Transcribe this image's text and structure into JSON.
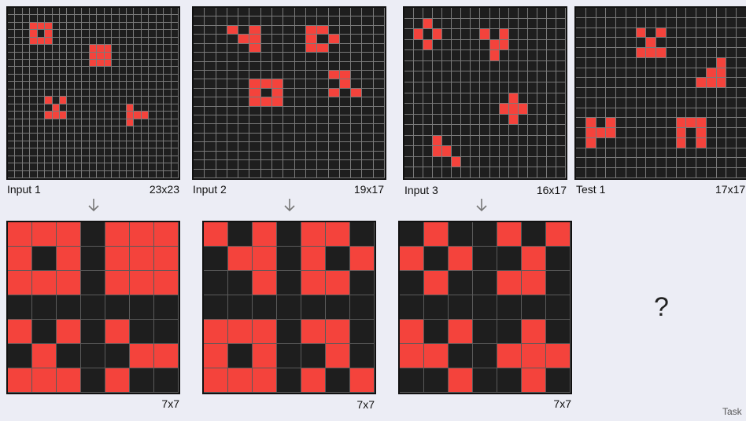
{
  "inputs": [
    {
      "label": "Input 1",
      "size": "23x23",
      "rows": 23,
      "cols": 23,
      "cells": [
        [
          2,
          3
        ],
        [
          2,
          4
        ],
        [
          2,
          5
        ],
        [
          3,
          3
        ],
        [
          3,
          5
        ],
        [
          4,
          3
        ],
        [
          4,
          4
        ],
        [
          4,
          5
        ],
        [
          5,
          11
        ],
        [
          5,
          12
        ],
        [
          5,
          13
        ],
        [
          6,
          11
        ],
        [
          6,
          12
        ],
        [
          6,
          13
        ],
        [
          7,
          11
        ],
        [
          7,
          12
        ],
        [
          7,
          13
        ],
        [
          12,
          5
        ],
        [
          12,
          7
        ],
        [
          13,
          6
        ],
        [
          14,
          5
        ],
        [
          14,
          6
        ],
        [
          14,
          7
        ],
        [
          13,
          16
        ],
        [
          14,
          16
        ],
        [
          14,
          17
        ],
        [
          14,
          18
        ],
        [
          15,
          16
        ]
      ]
    },
    {
      "label": "Input 2",
      "size": "19x17",
      "rows": 19,
      "cols": 17,
      "cells": [
        [
          2,
          3
        ],
        [
          2,
          5
        ],
        [
          3,
          4
        ],
        [
          3,
          5
        ],
        [
          4,
          5
        ],
        [
          2,
          10
        ],
        [
          2,
          11
        ],
        [
          3,
          10
        ],
        [
          3,
          12
        ],
        [
          4,
          10
        ],
        [
          4,
          11
        ],
        [
          8,
          5
        ],
        [
          8,
          6
        ],
        [
          8,
          7
        ],
        [
          9,
          5
        ],
        [
          9,
          7
        ],
        [
          10,
          5
        ],
        [
          10,
          6
        ],
        [
          10,
          7
        ],
        [
          7,
          12
        ],
        [
          7,
          13
        ],
        [
          8,
          13
        ],
        [
          9,
          12
        ],
        [
          9,
          14
        ]
      ]
    },
    {
      "label": "Input 3",
      "size": "16x17",
      "rows": 16,
      "cols": 17,
      "cells": [
        [
          1,
          2
        ],
        [
          2,
          1
        ],
        [
          2,
          3
        ],
        [
          3,
          2
        ],
        [
          2,
          8
        ],
        [
          2,
          10
        ],
        [
          3,
          9
        ],
        [
          3,
          10
        ],
        [
          4,
          9
        ],
        [
          8,
          11
        ],
        [
          9,
          10
        ],
        [
          9,
          11
        ],
        [
          9,
          12
        ],
        [
          10,
          11
        ],
        [
          12,
          3
        ],
        [
          13,
          3
        ],
        [
          13,
          4
        ],
        [
          14,
          5
        ]
      ]
    },
    {
      "label": "Test 1",
      "size": "17x17",
      "rows": 17,
      "cols": 17,
      "cells": [
        [
          2,
          6
        ],
        [
          2,
          8
        ],
        [
          3,
          7
        ],
        [
          4,
          6
        ],
        [
          4,
          7
        ],
        [
          4,
          8
        ],
        [
          5,
          14
        ],
        [
          6,
          13
        ],
        [
          6,
          14
        ],
        [
          7,
          12
        ],
        [
          7,
          13
        ],
        [
          7,
          14
        ],
        [
          11,
          1
        ],
        [
          11,
          3
        ],
        [
          12,
          1
        ],
        [
          12,
          2
        ],
        [
          12,
          3
        ],
        [
          13,
          1
        ],
        [
          11,
          10
        ],
        [
          11,
          11
        ],
        [
          11,
          12
        ],
        [
          12,
          10
        ],
        [
          12,
          12
        ],
        [
          13,
          10
        ],
        [
          13,
          12
        ]
      ]
    }
  ],
  "outputs": [
    {
      "size": "7x7",
      "rows": 7,
      "cols": 7,
      "cells": [
        [
          0,
          0
        ],
        [
          0,
          1
        ],
        [
          0,
          2
        ],
        [
          0,
          4
        ],
        [
          0,
          5
        ],
        [
          0,
          6
        ],
        [
          1,
          0
        ],
        [
          1,
          2
        ],
        [
          1,
          4
        ],
        [
          1,
          5
        ],
        [
          1,
          6
        ],
        [
          2,
          0
        ],
        [
          2,
          1
        ],
        [
          2,
          2
        ],
        [
          2,
          4
        ],
        [
          2,
          5
        ],
        [
          2,
          6
        ],
        [
          4,
          0
        ],
        [
          4,
          2
        ],
        [
          4,
          4
        ],
        [
          5,
          1
        ],
        [
          5,
          5
        ],
        [
          5,
          6
        ],
        [
          6,
          0
        ],
        [
          6,
          1
        ],
        [
          6,
          2
        ],
        [
          6,
          4
        ]
      ]
    },
    {
      "size": "7x7",
      "rows": 7,
      "cols": 7,
      "cells": [
        [
          0,
          0
        ],
        [
          0,
          2
        ],
        [
          0,
          4
        ],
        [
          0,
          5
        ],
        [
          1,
          1
        ],
        [
          1,
          2
        ],
        [
          1,
          4
        ],
        [
          1,
          6
        ],
        [
          2,
          2
        ],
        [
          2,
          4
        ],
        [
          2,
          5
        ],
        [
          4,
          0
        ],
        [
          4,
          1
        ],
        [
          4,
          2
        ],
        [
          4,
          4
        ],
        [
          4,
          5
        ],
        [
          5,
          0
        ],
        [
          5,
          2
        ],
        [
          5,
          5
        ],
        [
          6,
          0
        ],
        [
          6,
          1
        ],
        [
          6,
          2
        ],
        [
          6,
          4
        ],
        [
          6,
          6
        ]
      ]
    },
    {
      "size": "7x7",
      "rows": 7,
      "cols": 7,
      "cells": [
        [
          0,
          1
        ],
        [
          0,
          4
        ],
        [
          0,
          6
        ],
        [
          1,
          0
        ],
        [
          1,
          2
        ],
        [
          1,
          5
        ],
        [
          2,
          1
        ],
        [
          2,
          4
        ],
        [
          2,
          5
        ],
        [
          4,
          0
        ],
        [
          4,
          2
        ],
        [
          4,
          5
        ],
        [
          5,
          0
        ],
        [
          5,
          1
        ],
        [
          5,
          4
        ],
        [
          5,
          5
        ],
        [
          5,
          6
        ],
        [
          6,
          2
        ],
        [
          6,
          5
        ]
      ]
    }
  ],
  "test_output": {
    "placeholder": "?"
  },
  "footer": {
    "text": "Task"
  },
  "colors": {
    "on": "#f4433c",
    "off": "#1e1e1e",
    "background": "#ecedf5"
  }
}
